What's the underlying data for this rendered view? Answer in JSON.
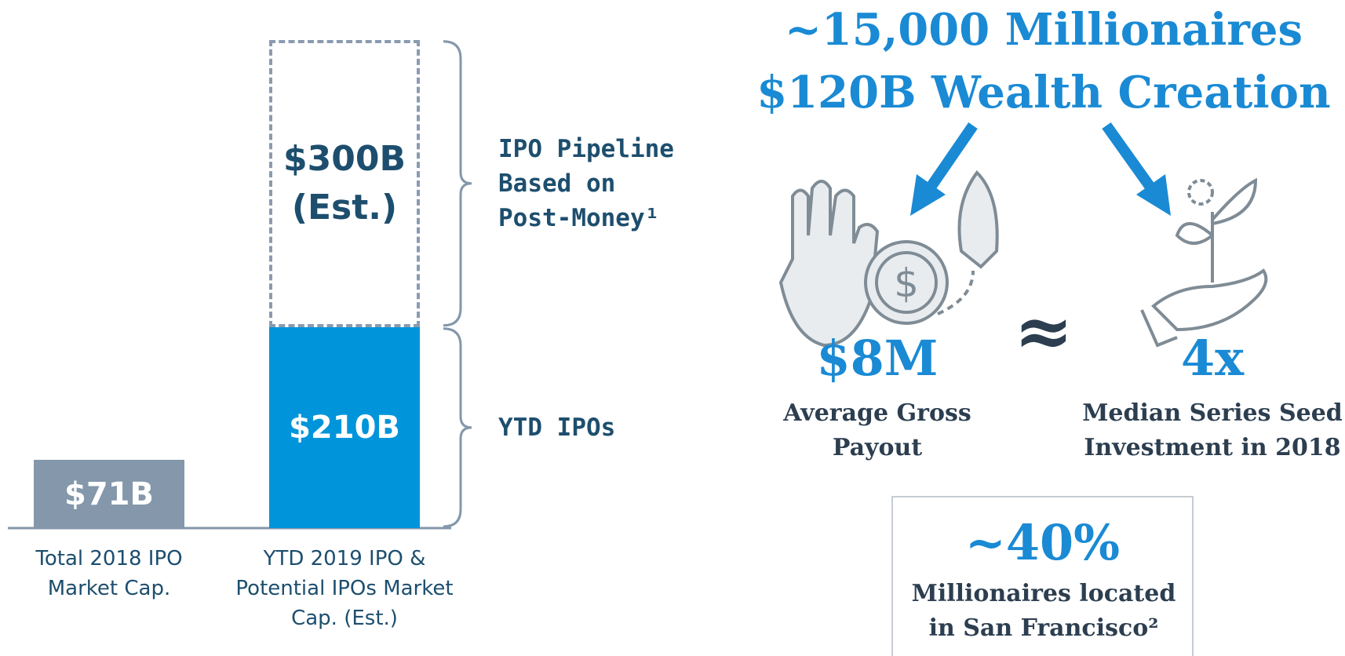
{
  "chart_data": {
    "type": "bar",
    "stacked": true,
    "categories": [
      "Total 2018 IPO Market Cap.",
      "YTD 2019 IPO & Potential IPOs Market Cap. (Est.)"
    ],
    "series": [
      {
        "color": "#8497ab",
        "values": [
          71,
          null
        ],
        "value_labels": [
          "$71B",
          null
        ]
      },
      {
        "name": "YTD IPOs",
        "color": "#0095da",
        "values": [
          null,
          210
        ],
        "value_labels": [
          null,
          "$210B"
        ]
      },
      {
        "name": "IPO Pipeline Based on Post-Money¹",
        "color": "#8a9bb0",
        "dashed": true,
        "values": [
          null,
          300
        ],
        "value_labels": [
          null,
          "$300B (Est.)"
        ]
      }
    ]
  },
  "headline": [
    "~15,000 Millionaires",
    "$120B Wealth Creation"
  ],
  "stats": [
    {
      "value": "$8M",
      "label": "Average Gross Payout"
    },
    {
      "value": "4x",
      "label": "Median Series Seed Investment in 2018"
    }
  ],
  "approx": "≈",
  "callout": {
    "value": "~40%",
    "label": "Millionaires located in San Francisco²"
  }
}
